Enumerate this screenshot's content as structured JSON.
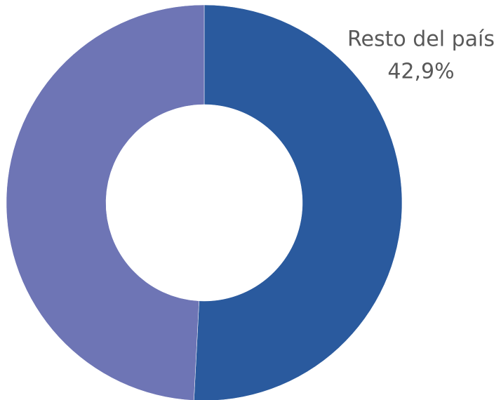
{
  "chart_data": {
    "type": "donut",
    "categories": [
      "Resto del país",
      null
    ],
    "values": [
      42.9,
      41.5
    ],
    "value_labels": [
      "42,9%",
      null
    ],
    "colors": [
      "#2a5a9e",
      "#6e75b5"
    ]
  }
}
